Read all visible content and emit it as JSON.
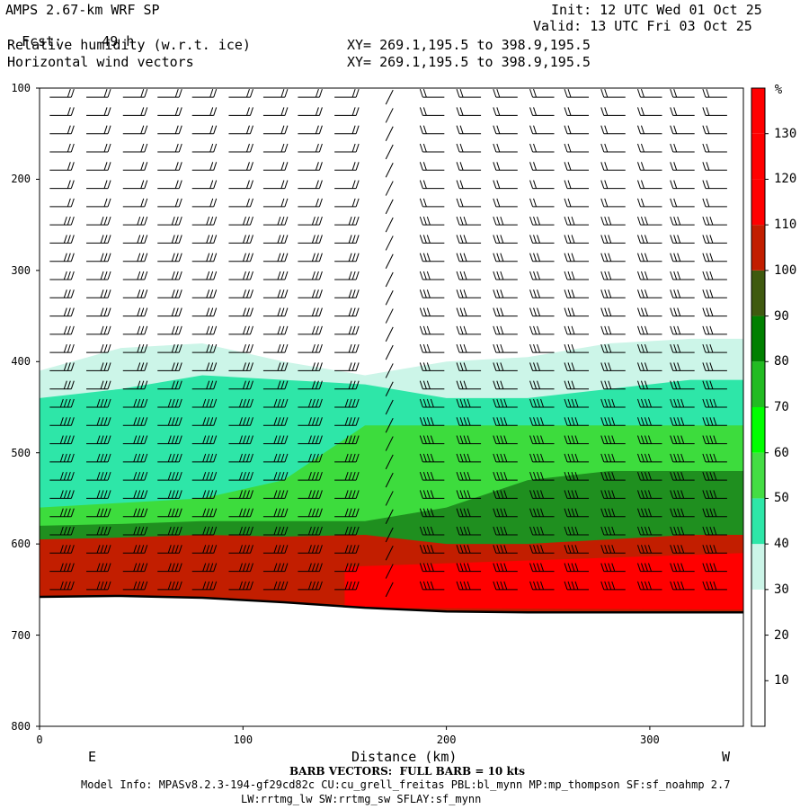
{
  "header": {
    "model": "AMPS 2.67-km WRF SP",
    "fcst_label": "Fcst:",
    "fcst_value": "49 h",
    "field1": "Relative humidity (w.r.t. ice)",
    "field2": "Horizontal wind vectors",
    "init": "Init: 12 UTC Wed 01 Oct 25",
    "valid": "Valid: 13 UTC Fri 03 Oct 25",
    "xy1": "XY= 269.1,195.5 to 398.9,195.5",
    "xy2": "XY= 269.1,195.5 to 398.9,195.5"
  },
  "footer": {
    "barb_note": "BARB VECTORS:  FULL BARB = 10 kts",
    "model_info": "Model Info: MPASv8.2.3-194-gf29cd82c CU:cu_grell_freitas PBL:bl_mynn MP:mp_thompson SF:sf_noahmp 2.7",
    "model_info2": "LW:rrtmg_lw SW:rrtmg_sw SFLAY:sf_mynn"
  },
  "chart_data": {
    "type": "heatmap",
    "xlabel": "Distance (km)",
    "ylabel": "",
    "left_end_label": "E",
    "right_end_label": "W",
    "xlim": [
      0,
      346
    ],
    "ylim": [
      800,
      100
    ],
    "x_ticks": [
      0,
      100,
      200,
      300
    ],
    "y_ticks": [
      100,
      200,
      300,
      400,
      500,
      600,
      700,
      800
    ],
    "colorbar": {
      "unit": "%",
      "tick_labels": [
        10,
        20,
        30,
        40,
        50,
        60,
        70,
        80,
        90,
        100,
        110,
        120,
        130
      ],
      "levels": [
        0,
        10,
        20,
        30,
        40,
        50,
        60,
        70,
        80,
        90,
        100,
        110,
        120,
        130,
        140
      ],
      "colors": [
        "#ffffff",
        "#ffffff",
        "#ffffff",
        "#ccf5e8",
        "#2ee6a8",
        "#44dd44",
        "#00ff00",
        "#22bb22",
        "#008000",
        "#3f5a0f",
        "#c21e00",
        "#ff0000",
        "#ff0000",
        "#ff0000"
      ]
    },
    "terrain_pressure": {
      "x": [
        0,
        40,
        80,
        120,
        160,
        200,
        240,
        280,
        320,
        346
      ],
      "p": [
        658,
        657,
        659,
        664,
        670,
        674,
        675,
        675,
        675,
        675
      ]
    },
    "rh_layers": [
      {
        "range_pct": "30-40",
        "top_p": [
          410,
          385,
          380,
          400,
          415,
          400,
          395,
          380,
          375,
          375
        ]
      },
      {
        "range_pct": "40-50",
        "top_p": [
          440,
          430,
          415,
          420,
          425,
          440,
          440,
          430,
          420,
          420
        ]
      },
      {
        "range_pct": "60-70",
        "top_p": [
          560,
          555,
          550,
          530,
          470,
          470,
          470,
          470,
          470,
          470
        ]
      },
      {
        "range_pct": "80-90",
        "top_p": [
          580,
          578,
          575,
          575,
          575,
          560,
          530,
          520,
          520,
          520
        ]
      },
      {
        "range_pct": "100-110",
        "top_p": [
          595,
          593,
          590,
          592,
          590,
          600,
          600,
          595,
          590,
          590
        ]
      }
    ],
    "barbs": {
      "x": [
        5,
        23,
        41,
        58,
        75,
        93,
        110,
        127,
        145,
        172,
        199,
        217,
        235,
        253,
        270,
        288,
        306,
        322,
        338
      ],
      "p_step": 20,
      "p_top": 110
    }
  }
}
